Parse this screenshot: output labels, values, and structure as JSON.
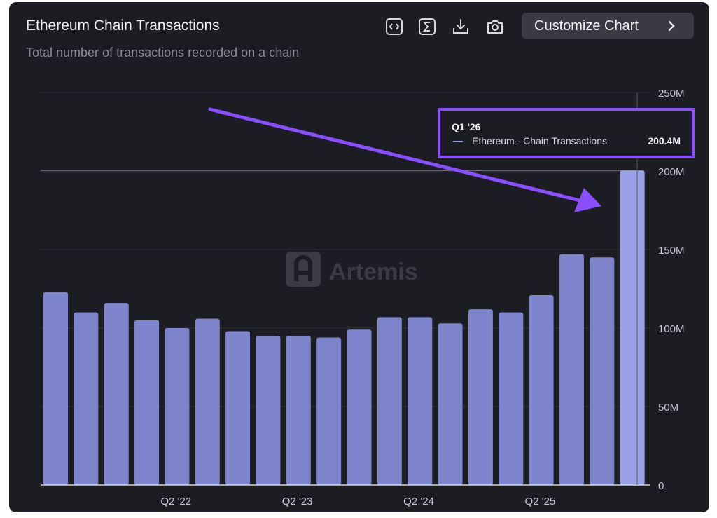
{
  "header": {
    "title": "Ethereum Chain Transactions",
    "subtitle": "Total number of transactions recorded on a chain",
    "customize_label": "Customize Chart",
    "tools": [
      "embed-code-icon",
      "sigma-icon",
      "download-icon",
      "camera-icon"
    ]
  },
  "watermark": "Artemis",
  "tooltip": {
    "period": "Q1 '26",
    "series": "Ethereum - Chain Transactions",
    "value": "200.4M"
  },
  "colors": {
    "background": "#1c1c23",
    "bar": "#7f85cd",
    "bar_highlight": "#9aa0e4",
    "annotation": "#8a4dff"
  },
  "chart_data": {
    "type": "bar",
    "title": "Ethereum Chain Transactions",
    "subtitle": "Total number of transactions recorded on a chain",
    "series": [
      {
        "name": "Ethereum - Chain Transactions",
        "values": [
          123,
          110,
          116,
          105,
          100,
          106,
          98,
          95,
          95,
          94,
          99,
          107,
          107,
          103,
          112,
          110,
          121,
          147,
          145,
          200.4
        ]
      }
    ],
    "x_tick_labels": [
      "Q2 '22",
      "Q2 '23",
      "Q2 '24",
      "Q2 '25"
    ],
    "y_tick_labels": [
      "0",
      "50M",
      "100M",
      "150M",
      "200M",
      "250M"
    ],
    "ylim": [
      0,
      250
    ],
    "y_unit": "M",
    "grid": true,
    "highlighted_index": 19
  }
}
